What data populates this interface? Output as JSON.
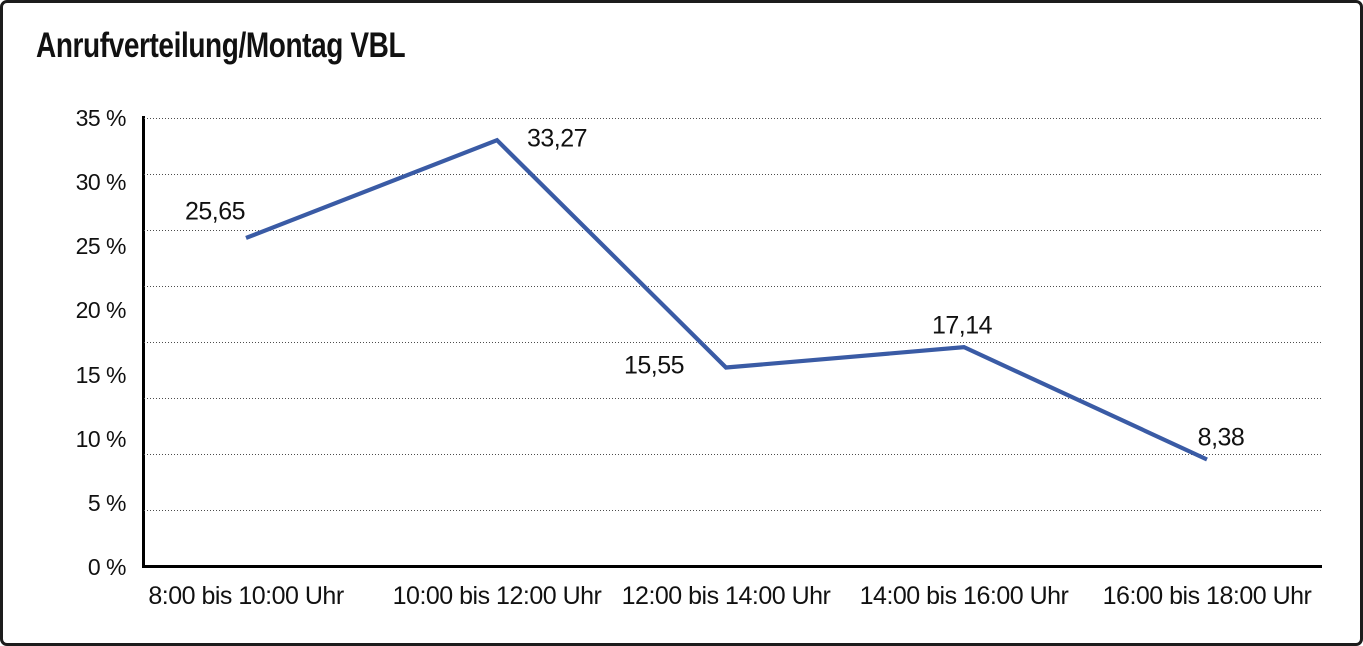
{
  "chart_data": {
    "type": "line",
    "title": "Anrufverteilung/Montag VBL",
    "categories": [
      "8:00 bis 10:00 Uhr",
      "10:00 bis 12:00 Uhr",
      "12:00 bis 14:00 Uhr",
      "14:00 bis 16:00 Uhr",
      "16:00 bis 18:00 Uhr"
    ],
    "values": [
      25.65,
      33.27,
      15.55,
      17.14,
      8.38
    ],
    "point_labels": [
      "25,65",
      "33,27",
      "15,55",
      "17,14",
      "8,38"
    ],
    "decimal_separator": ",",
    "xlabel": "",
    "ylabel": "",
    "ylim": [
      0,
      35
    ],
    "y_ticks": [
      {
        "value": 35,
        "label": "35 %"
      },
      {
        "value": 30,
        "label": "30 %"
      },
      {
        "value": 25,
        "label": "25 %"
      },
      {
        "value": 20,
        "label": "20 %"
      },
      {
        "value": 15,
        "label": "15 %"
      },
      {
        "value": 10,
        "label": "10 %"
      },
      {
        "value": 5,
        "label": "5 %"
      },
      {
        "value": 0,
        "label": "0 %"
      }
    ],
    "grid": "horizontal-dotted",
    "legend": "none",
    "line_color": "#3a5ba5",
    "axis_color": "#000000",
    "text_color": "#111111"
  }
}
